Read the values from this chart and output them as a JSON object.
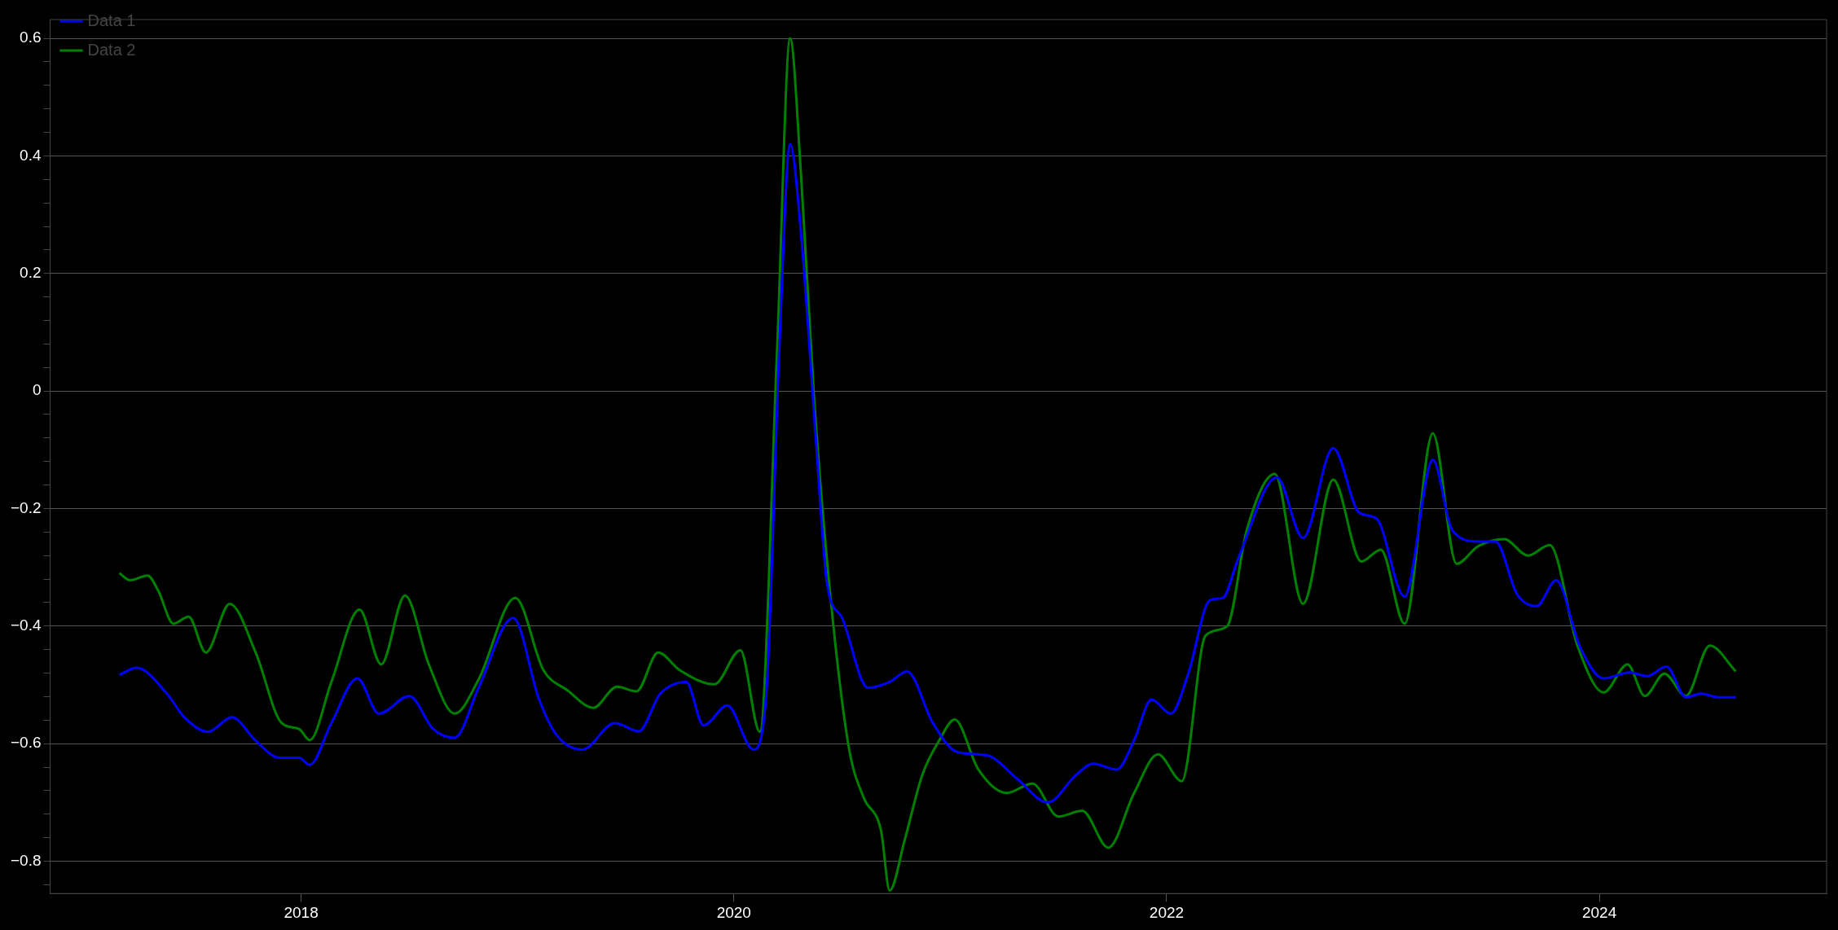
{
  "chart_data": {
    "type": "line",
    "legend": "top left",
    "grid": "y",
    "marker": "none",
    "line_style": "solid",
    "xlim": [
      2016.84,
      2025.05
    ],
    "xticks": [
      2018,
      2020,
      2022,
      2024
    ],
    "ylim": [
      -0.855,
      0.632
    ],
    "yticks": [
      {
        "value": -0.84,
        "label": null
      },
      {
        "value": -0.8,
        "label": "−0.8"
      },
      {
        "value": -0.76,
        "label": null
      },
      {
        "value": -0.72,
        "label": null
      },
      {
        "value": -0.68,
        "label": null
      },
      {
        "value": -0.64,
        "label": null
      },
      {
        "value": -0.6,
        "label": "−0.6"
      },
      {
        "value": -0.56,
        "label": null
      },
      {
        "value": -0.52,
        "label": null
      },
      {
        "value": -0.48,
        "label": null
      },
      {
        "value": -0.44,
        "label": null
      },
      {
        "value": -0.4,
        "label": "−0.4"
      },
      {
        "value": -0.36,
        "label": null
      },
      {
        "value": -0.32,
        "label": null
      },
      {
        "value": -0.28,
        "label": null
      },
      {
        "value": -0.24,
        "label": null
      },
      {
        "value": -0.2,
        "label": "−0.2"
      },
      {
        "value": -0.16,
        "label": null
      },
      {
        "value": -0.12,
        "label": null
      },
      {
        "value": -0.08,
        "label": null
      },
      {
        "value": -0.04,
        "label": null
      },
      0,
      {
        "value": 0.04,
        "label": null
      },
      {
        "value": 0.08,
        "label": null
      },
      {
        "value": 0.12,
        "label": null
      },
      {
        "value": 0.16,
        "label": null
      },
      0.2,
      {
        "value": 0.24,
        "label": null
      },
      {
        "value": 0.28,
        "label": null
      },
      {
        "value": 0.32,
        "label": null
      },
      {
        "value": 0.36,
        "label": null
      },
      0.4,
      {
        "value": 0.44,
        "label": null
      },
      {
        "value": 0.48,
        "label": null
      },
      {
        "value": 0.52,
        "label": null
      },
      {
        "value": 0.56,
        "label": null
      },
      0.6
    ],
    "series": [
      {
        "name": "Data 1",
        "color": "#0000ff",
        "x": [
          2017.16,
          2017.24,
          2017.38,
          2017.46,
          2017.57,
          2017.68,
          2017.79,
          2017.9,
          2017.99,
          2018.04,
          2018.14,
          2018.26,
          2018.36,
          2018.5,
          2018.61,
          2018.71,
          2018.82,
          2018.98,
          2019.1,
          2019.18,
          2019.3,
          2019.45,
          2019.56,
          2019.66,
          2019.78,
          2019.86,
          2019.97,
          2020.09,
          2020.15,
          2020.21,
          2020.26,
          2020.31,
          2020.38,
          2020.43,
          2020.5,
          2020.62,
          2020.72,
          2020.8,
          2020.92,
          2021.03,
          2021.17,
          2021.31,
          2021.45,
          2021.58,
          2021.66,
          2021.77,
          2021.85,
          2021.93,
          2022.02,
          2022.1,
          2022.2,
          2022.26,
          2022.33,
          2022.51,
          2022.63,
          2022.77,
          2022.89,
          2022.97,
          2023.1,
          2023.23,
          2023.32,
          2023.44,
          2023.52,
          2023.62,
          2023.71,
          2023.8,
          2023.91,
          2024.02,
          2024.14,
          2024.22,
          2024.31,
          2024.4,
          2024.47,
          2024.55,
          2024.63
        ],
        "values": [
          -0.483,
          -0.471,
          -0.515,
          -0.555,
          -0.58,
          -0.555,
          -0.595,
          -0.624,
          -0.624,
          -0.636,
          -0.565,
          -0.489,
          -0.549,
          -0.519,
          -0.575,
          -0.59,
          -0.505,
          -0.386,
          -0.525,
          -0.585,
          -0.61,
          -0.565,
          -0.579,
          -0.515,
          -0.495,
          -0.569,
          -0.535,
          -0.61,
          -0.515,
          0.072,
          0.42,
          0.27,
          -0.087,
          -0.326,
          -0.386,
          -0.505,
          -0.495,
          -0.477,
          -0.565,
          -0.614,
          -0.62,
          -0.66,
          -0.7,
          -0.654,
          -0.634,
          -0.644,
          -0.594,
          -0.525,
          -0.549,
          -0.481,
          -0.356,
          -0.352,
          -0.286,
          -0.147,
          -0.25,
          -0.097,
          -0.207,
          -0.217,
          -0.35,
          -0.117,
          -0.237,
          -0.256,
          -0.256,
          -0.346,
          -0.366,
          -0.322,
          -0.435,
          -0.489,
          -0.479,
          -0.485,
          -0.469,
          -0.521,
          -0.515,
          -0.521,
          -0.521
        ]
      },
      {
        "name": "Data 2",
        "color": "#008000",
        "x": [
          2017.16,
          2017.21,
          2017.29,
          2017.34,
          2017.41,
          2017.48,
          2017.56,
          2017.67,
          2017.79,
          2017.91,
          2017.99,
          2018.04,
          2018.14,
          2018.27,
          2018.37,
          2018.48,
          2018.59,
          2018.71,
          2018.82,
          2018.99,
          2019.12,
          2019.23,
          2019.35,
          2019.46,
          2019.55,
          2019.65,
          2019.75,
          2019.91,
          2020.03,
          2020.12,
          2020.2,
          2020.26,
          2020.31,
          2020.37,
          2020.44,
          2020.53,
          2020.6,
          2020.68,
          2020.72,
          2020.79,
          2020.87,
          2020.95,
          2021.02,
          2021.13,
          2021.26,
          2021.38,
          2021.5,
          2021.61,
          2021.73,
          2021.85,
          2021.96,
          2022.07,
          2022.18,
          2022.28,
          2022.37,
          2022.5,
          2022.63,
          2022.77,
          2022.9,
          2022.99,
          2023.1,
          2023.23,
          2023.34,
          2023.44,
          2023.56,
          2023.67,
          2023.77,
          2023.9,
          2024.02,
          2024.13,
          2024.21,
          2024.3,
          2024.4,
          2024.51,
          2024.63
        ],
        "values": [
          -0.31,
          -0.322,
          -0.314,
          -0.34,
          -0.396,
          -0.384,
          -0.445,
          -0.362,
          -0.445,
          -0.565,
          -0.575,
          -0.594,
          -0.495,
          -0.372,
          -0.465,
          -0.348,
          -0.465,
          -0.549,
          -0.491,
          -0.352,
          -0.475,
          -0.509,
          -0.539,
          -0.503,
          -0.511,
          -0.445,
          -0.475,
          -0.499,
          -0.441,
          -0.58,
          0.072,
          0.6,
          0.37,
          -0.008,
          -0.326,
          -0.604,
          -0.692,
          -0.748,
          -0.85,
          -0.763,
          -0.654,
          -0.594,
          -0.559,
          -0.644,
          -0.684,
          -0.668,
          -0.724,
          -0.714,
          -0.777,
          -0.684,
          -0.618,
          -0.664,
          -0.416,
          -0.4,
          -0.237,
          -0.141,
          -0.362,
          -0.151,
          -0.29,
          -0.27,
          -0.396,
          -0.072,
          -0.294,
          -0.264,
          -0.252,
          -0.28,
          -0.262,
          -0.435,
          -0.513,
          -0.465,
          -0.519,
          -0.481,
          -0.519,
          -0.433,
          -0.477
        ]
      }
    ]
  }
}
